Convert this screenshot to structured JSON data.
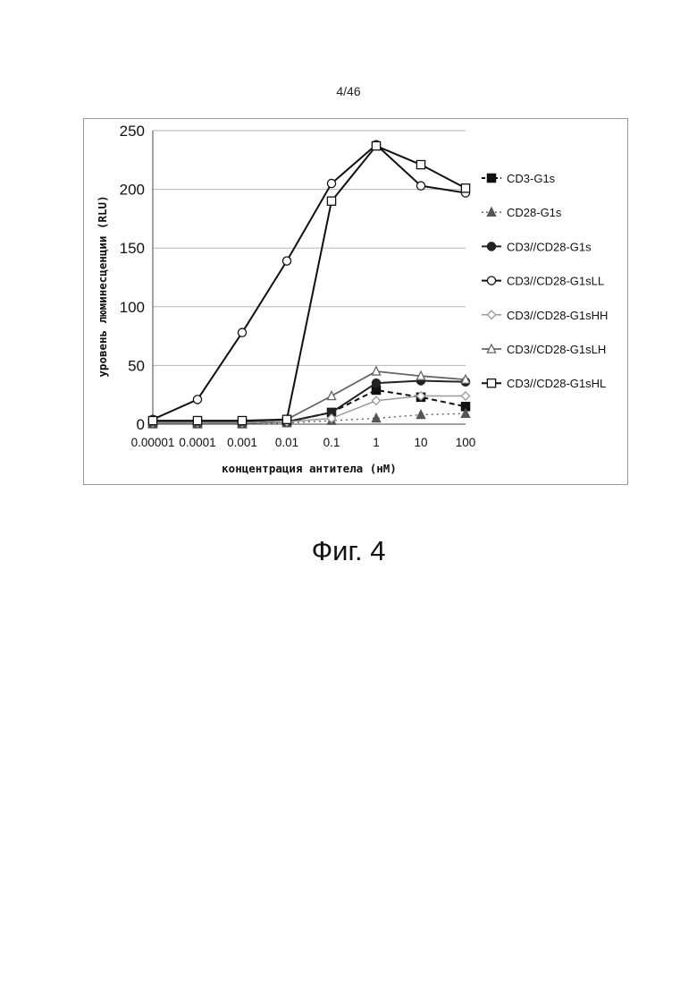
{
  "page": {
    "number": "4/46",
    "caption": "Фиг. 4"
  },
  "chart_data": {
    "type": "line",
    "xscale": "log",
    "x": [
      "0.00001",
      "0.0001",
      "0.001",
      "0.01",
      "0.1",
      "1",
      "10",
      "100"
    ],
    "xlabel": "концентрация антитела (нМ)",
    "ylabel": "уровень люминесценции (RLU)",
    "ylim": [
      0,
      250
    ],
    "yticks": [
      "0",
      "50",
      "100",
      "150",
      "200",
      "250"
    ],
    "grid": "horizontal",
    "legend_position": "right",
    "series": [
      {
        "name": "CD3-G1s",
        "values": [
          1,
          1,
          1,
          2,
          10,
          29,
          23,
          15
        ],
        "color": "#111111",
        "dash": "6,4",
        "width": 2,
        "marker": "square-filled"
      },
      {
        "name": "CD28-G1s",
        "values": [
          0,
          0,
          0,
          1,
          3,
          5,
          8,
          9
        ],
        "color": "#555555",
        "dash": "2,4",
        "width": 1.3,
        "marker": "triangle-filled"
      },
      {
        "name": "CD3//CD28-G1s",
        "values": [
          1,
          1,
          1,
          2,
          10,
          35,
          37,
          36
        ],
        "color": "#222222",
        "dash": "",
        "width": 2,
        "marker": "circle-filled"
      },
      {
        "name": "CD3//CD28-G1sLL",
        "values": [
          4,
          21,
          78,
          139,
          205,
          238,
          203,
          197
        ],
        "color": "#111111",
        "dash": "",
        "width": 2,
        "marker": "circle-open"
      },
      {
        "name": "CD3//CD28-G1sHH",
        "values": [
          1,
          1,
          1,
          2,
          5,
          20,
          24,
          24
        ],
        "color": "#999999",
        "dash": "",
        "width": 1.5,
        "marker": "diamond-open"
      },
      {
        "name": "CD3//CD28-G1sLH",
        "values": [
          2,
          2,
          2,
          4,
          24,
          45,
          41,
          38
        ],
        "color": "#666666",
        "dash": "",
        "width": 1.8,
        "marker": "triangle-open"
      },
      {
        "name": "CD3//CD28-G1sHL",
        "values": [
          3,
          3,
          3,
          4,
          190,
          237,
          221,
          201
        ],
        "color": "#111111",
        "dash": "",
        "width": 2,
        "marker": "square-open"
      }
    ]
  }
}
